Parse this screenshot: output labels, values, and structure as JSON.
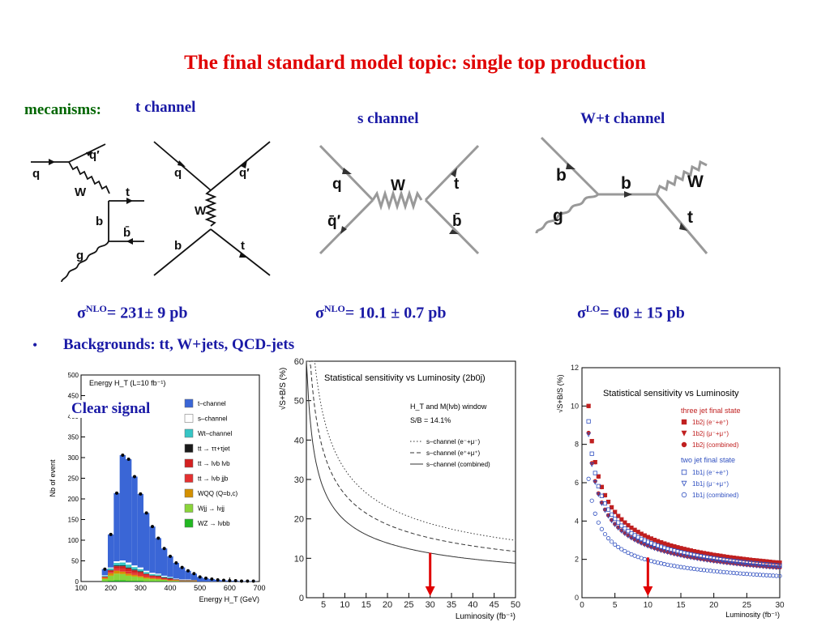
{
  "title": "The final standard model topic: single top production",
  "labels": {
    "mechanisms": "mecanisms:",
    "t_channel": "t channel",
    "s_channel": "s channel",
    "wt_channel": "W+t channel"
  },
  "diagrams": {
    "t1": {
      "q": "q",
      "qp": "q′",
      "W": "W",
      "t": "t",
      "b": "b",
      "bbar": "b̄",
      "g": "g"
    },
    "t2": {
      "q": "q",
      "qp": "q′",
      "W": "W",
      "b": "b",
      "t": "t"
    },
    "s": {
      "q": "q",
      "qbarp": "q̄′",
      "W": "W",
      "t": "t",
      "bbar": "b̄"
    },
    "wt": {
      "b1": "b",
      "g": "g",
      "b2": "b",
      "W": "W",
      "t": "t"
    }
  },
  "cross_sections": {
    "t": {
      "sigma": "σ",
      "sup": "NLO",
      "value": "= 231± 9 pb"
    },
    "s": {
      "sigma": "σ",
      "sup": "NLO",
      "value": "= 10.1 ± 0.7 pb"
    },
    "wt": {
      "sigma": "σ",
      "sup": "LO",
      "value": "= 60 ± 15 pb"
    }
  },
  "bullet": "•",
  "backgrounds": "Backgrounds: tt, W+jets, QCD-jets",
  "clear_signal": "Clear signal",
  "colors": {
    "title": "#e00000",
    "green": "#006600",
    "blue": "#1a1aa6",
    "arrow": "#e00000"
  },
  "chart_data": [
    {
      "type": "bar",
      "stacked": true,
      "title": "Energy H_T (L=10 fb⁻¹)",
      "ylabel": "Nb of event",
      "xlabel": "Energy H_T (GeV)",
      "xlim": [
        100,
        700
      ],
      "ylim": [
        0,
        500
      ],
      "xticks": [
        "100",
        "200",
        "300",
        "400",
        "500",
        "600",
        "700"
      ],
      "yticks": [
        "0",
        "50",
        "100",
        "150",
        "200",
        "250",
        "300",
        "350",
        "400",
        "450",
        "500"
      ],
      "x": [
        180,
        200,
        220,
        240,
        260,
        280,
        300,
        320,
        340,
        360,
        380,
        400,
        420,
        440,
        460,
        480,
        500,
        520,
        540,
        560,
        580,
        600,
        620,
        640,
        660,
        680
      ],
      "series": [
        {
          "name": "t–channel",
          "color": "#3a66d6",
          "values": [
            15,
            80,
            165,
            255,
            250,
            215,
            178,
            140,
            112,
            86,
            66,
            50,
            38,
            29,
            21,
            15,
            11,
            8,
            6,
            4,
            3,
            2,
            2,
            1,
            1,
            1
          ]
        },
        {
          "name": "s–channel",
          "color": "#ffffff",
          "values": [
            1,
            2,
            4,
            5,
            5,
            4,
            4,
            3,
            3,
            2,
            2,
            1,
            1,
            1,
            1,
            0,
            0,
            0,
            0,
            0,
            0,
            0,
            0,
            0,
            0,
            0
          ]
        },
        {
          "name": "Wt–channel",
          "color": "#36c6c6",
          "values": [
            2,
            4,
            6,
            7,
            7,
            6,
            5,
            4,
            3,
            3,
            2,
            2,
            1,
            1,
            1,
            1,
            0,
            0,
            0,
            0,
            0,
            0,
            0,
            0,
            0,
            0
          ]
        },
        {
          "name": "tt → ττ+τjet",
          "color": "#1a1a1a",
          "values": [
            0,
            1,
            2,
            2,
            2,
            2,
            2,
            1,
            1,
            1,
            1,
            1,
            0,
            0,
            0,
            0,
            0,
            0,
            0,
            0,
            0,
            0,
            0,
            0,
            0,
            0
          ]
        },
        {
          "name": "tt → lνb lνb",
          "color": "#d42020",
          "values": [
            2,
            4,
            6,
            7,
            7,
            6,
            5,
            4,
            3,
            3,
            2,
            2,
            1,
            1,
            1,
            1,
            0,
            0,
            0,
            0,
            0,
            0,
            0,
            0,
            0,
            0
          ]
        },
        {
          "name": "tt → lνb jjb",
          "color": "#e43030",
          "values": [
            1,
            3,
            5,
            6,
            6,
            5,
            5,
            4,
            3,
            3,
            2,
            2,
            1,
            1,
            1,
            1,
            0,
            0,
            0,
            0,
            0,
            0,
            0,
            0,
            0,
            0
          ]
        },
        {
          "name": "WQQ (Q=b,c)",
          "color": "#d49000",
          "values": [
            3,
            6,
            7,
            6,
            5,
            4,
            3,
            3,
            2,
            2,
            1,
            1,
            1,
            0,
            0,
            0,
            0,
            0,
            0,
            0,
            0,
            0,
            0,
            0,
            0,
            0
          ]
        },
        {
          "name": "Wjj → lνjj",
          "color": "#8ad43a",
          "values": [
            5,
            12,
            16,
            15,
            12,
            10,
            8,
            6,
            5,
            4,
            3,
            2,
            2,
            1,
            1,
            1,
            0,
            0,
            0,
            0,
            0,
            0,
            0,
            0,
            0,
            0
          ]
        },
        {
          "name": "WZ → lνbb",
          "color": "#22b822",
          "values": [
            1,
            2,
            3,
            3,
            2,
            2,
            2,
            1,
            1,
            1,
            1,
            0,
            0,
            0,
            0,
            0,
            0,
            0,
            0,
            0,
            0,
            0,
            0,
            0,
            0,
            0
          ]
        }
      ]
    },
    {
      "type": "line",
      "title": "Statistical sensitivity vs Luminosity (2b0j)",
      "ylabel": "√S+B/S (%)",
      "xlabel": "Luminosity (fb⁻¹)",
      "xlim": [
        1,
        50
      ],
      "ylim": [
        0,
        60
      ],
      "xticks": [
        "5",
        "10",
        "15",
        "20",
        "25",
        "30",
        "35",
        "40",
        "45",
        "50"
      ],
      "yticks": [
        "0",
        "10",
        "20",
        "30",
        "40",
        "50",
        "60"
      ],
      "annotations": [
        "H_T and M(lνb) window",
        "S/B = 14.1%"
      ],
      "series": [
        {
          "name": "s–channel (e⁻+μ⁻)",
          "style": "dotted",
          "k": 103
        },
        {
          "name": "s–channel (e⁺+μ⁺)",
          "style": "dashed",
          "k": 83
        },
        {
          "name": "s–channel (combined)",
          "style": "solid",
          "k": 62
        }
      ],
      "marker_x": 30,
      "marker_y": 11.4
    },
    {
      "type": "scatter",
      "title": "Statistical sensitivity vs Luminosity",
      "ylabel": "√S+B/S (%)",
      "xlabel": "Luminosity (fb⁻¹)",
      "xlim": [
        0,
        30
      ],
      "ylim": [
        0,
        12
      ],
      "xticks": [
        "0",
        "5",
        "10",
        "15",
        "20",
        "25",
        "30"
      ],
      "yticks": [
        "0",
        "2",
        "4",
        "6",
        "8",
        "10",
        "12"
      ],
      "legend_groups": [
        "three jet final state",
        "two jet final state"
      ],
      "series": [
        {
          "name": "1b2j (e⁻+e⁺)",
          "marker": "square-filled",
          "color": "#c02020",
          "k": 10.0
        },
        {
          "name": "1b2j (μ⁻+μ⁺)",
          "marker": "triangle-filled",
          "color": "#c02020",
          "k": 10.0
        },
        {
          "name": "1b2j (combined)",
          "marker": "circle-filled",
          "color": "#c02020",
          "k": 8.6
        },
        {
          "name": "1b1j (e⁻+e⁺)",
          "marker": "square-open",
          "color": "#3050c0",
          "k": 9.2
        },
        {
          "name": "1b1j (μ⁻+μ⁺)",
          "marker": "triangle-open",
          "color": "#3050c0",
          "k": 8.5
        },
        {
          "name": "1b1j (combined)",
          "marker": "circle-open",
          "color": "#3050c0",
          "k": 6.2
        }
      ],
      "marker_x": 10,
      "marker_y": 2.1
    }
  ]
}
